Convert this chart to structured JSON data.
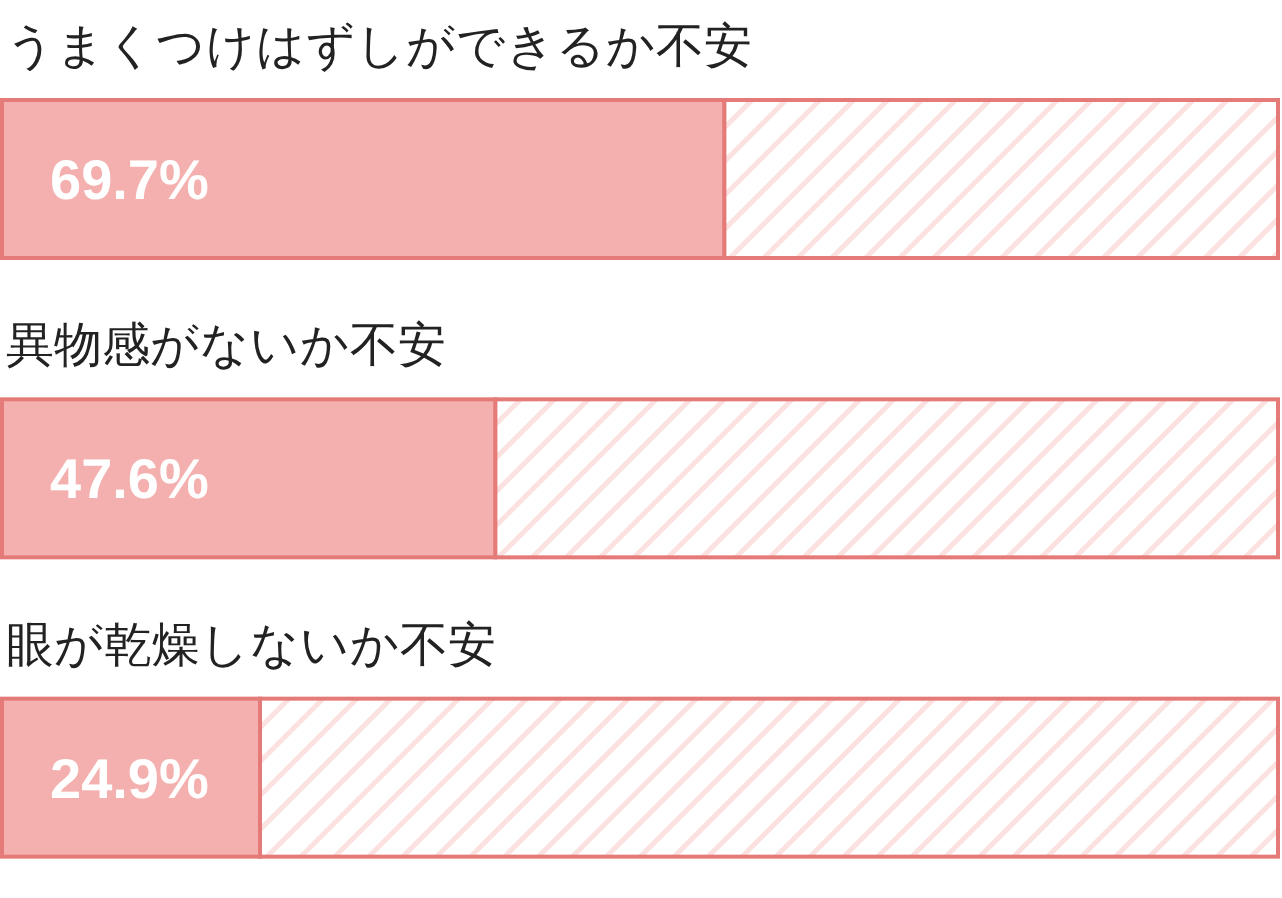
{
  "chart_data": {
    "type": "bar",
    "orientation": "horizontal",
    "categories": [
      "うまくつけはずしができるか不安",
      "異物感がないか不安",
      "眼が乾燥しないか不安"
    ],
    "values": [
      69.7,
      47.6,
      24.9
    ],
    "color": "#f4b0ae",
    "value_labels": [
      "69.7%",
      "47.6%",
      "24.9%"
    ]
  }
}
